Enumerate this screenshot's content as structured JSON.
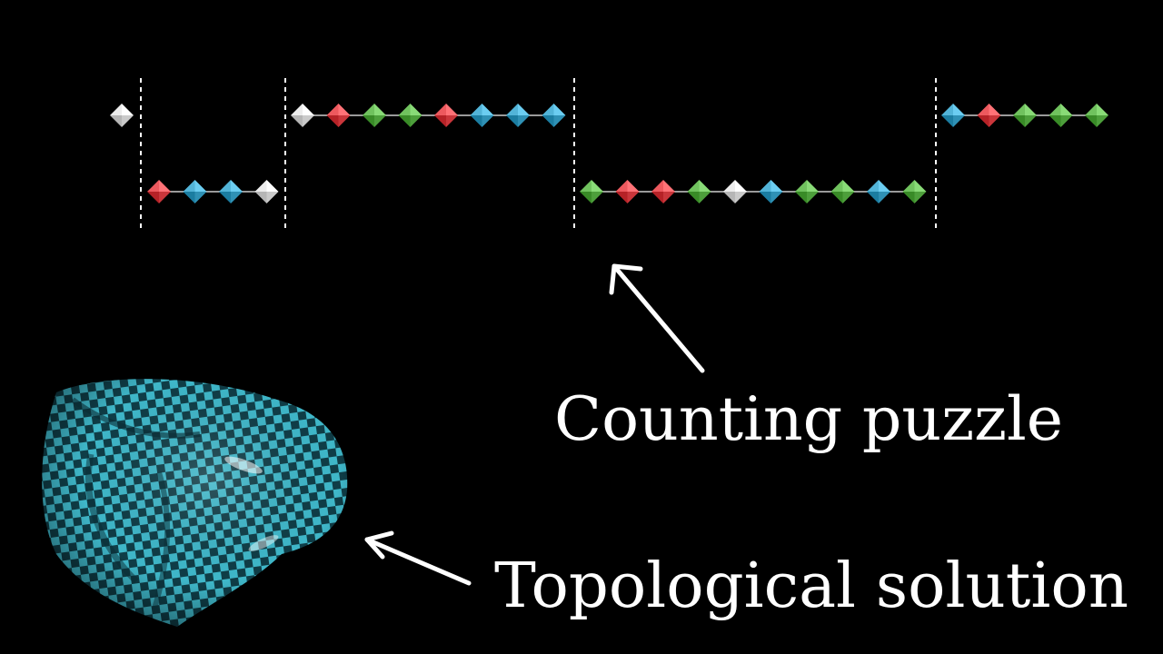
{
  "labels": {
    "counting": "Counting puzzle",
    "topological": "Topological solution"
  },
  "colors": {
    "background": "#000000",
    "white": "#d9d9d9",
    "red": "#d9454a",
    "green": "#5cae4a",
    "blue": "#3ea0c4",
    "connector": "#9a9a9a",
    "divider": "#ffffff",
    "arrow": "#ffffff",
    "surface_light": "#3fb7c9",
    "surface_dark": "#134a55"
  },
  "necklace": {
    "top_row": {
      "segment_1": [
        "white"
      ],
      "segment_3": [
        "white",
        "red",
        "green",
        "green",
        "red",
        "blue",
        "blue",
        "blue"
      ],
      "segment_5": [
        "blue",
        "red",
        "green",
        "green",
        "green"
      ]
    },
    "bottom_row": {
      "segment_2": [
        "red",
        "blue",
        "blue",
        "white"
      ],
      "segment_4": [
        "green",
        "red",
        "red",
        "green",
        "white",
        "blue",
        "green",
        "green",
        "blue",
        "green"
      ]
    }
  },
  "icons": {
    "arrow_up": "arrow-up-left-icon",
    "arrow_left": "arrow-left-icon",
    "surface": "checkered-surface-image"
  }
}
